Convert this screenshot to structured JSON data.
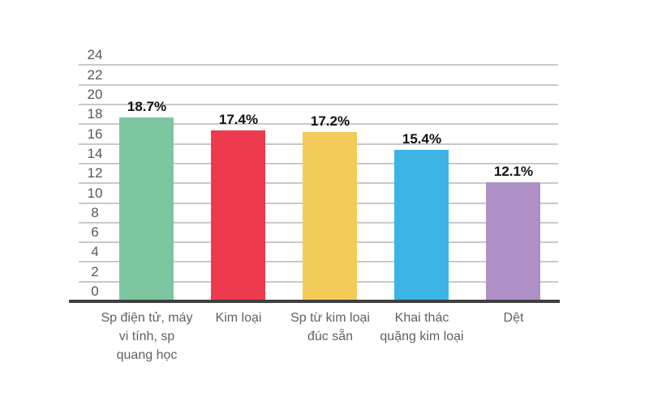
{
  "chart_data": {
    "type": "bar",
    "title": "",
    "categories": [
      "Sp điện tử, máy vi tính, sp quang học",
      "Kim loại",
      "Sp từ kim loại đúc sẵn",
      "Khai thác quặng kim loại",
      "Dệt"
    ],
    "category_lines": [
      [
        "Sp điện tử, máy",
        "vi tính, sp",
        "quang học"
      ],
      [
        "Kim loại"
      ],
      [
        "Sp từ kim loại",
        "đúc sẵn"
      ],
      [
        "Khai thác",
        "quặng kim loại"
      ],
      [
        "Dệt"
      ]
    ],
    "values": [
      18.7,
      17.4,
      17.2,
      15.4,
      12.1
    ],
    "value_labels": [
      "18.7%",
      "17.4%",
      "17.2%",
      "15.4%",
      "12.1%"
    ],
    "bar_colors": [
      "#7dc6a0",
      "#ee3a4f",
      "#f3cb58",
      "#3cb4e5",
      "#af90c7"
    ],
    "ylim": [
      0,
      24
    ],
    "ytick_step": 2,
    "ytick_labels": [
      "0",
      "2",
      "4",
      "6",
      "8",
      "10",
      "12",
      "14",
      "16",
      "18",
      "20",
      "22",
      "24"
    ],
    "xlabel": "",
    "ylabel": "",
    "grid": true,
    "legend": "none"
  },
  "style": {
    "background": "#ffffff",
    "grid_color": "#c9c9c9",
    "axis_color": "#3f3f3f",
    "ytick_color": "#56565a",
    "category_color": "#616161",
    "value_color": "#111111"
  }
}
